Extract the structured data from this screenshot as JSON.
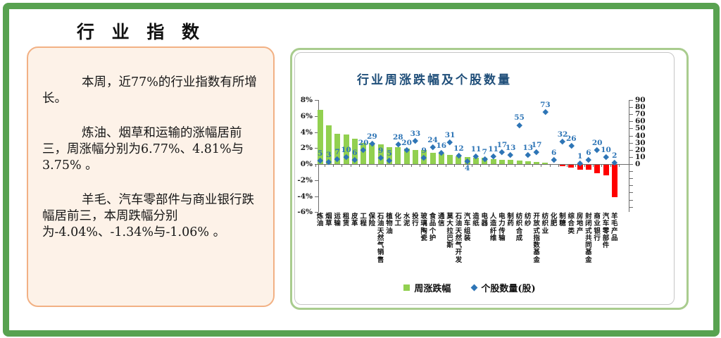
{
  "page": {
    "title": "行 业 指 数"
  },
  "summary_box": {
    "paragraphs": [
      "本周，近77%的行业指数有所增长。",
      "炼油、烟草和运输的涨幅居前三，周涨幅分别为6.77%、4.81%与3.75% 。",
      "羊毛、汽车零部件与商业银行跌幅居前三，本周跌幅分别为-4.04%、-1.34%与-1.06% 。"
    ]
  },
  "chart": {
    "title": "行业周涨跌幅及个股数量",
    "legend": [
      {
        "label": "周涨跌幅",
        "marker": "green-square"
      },
      {
        "label": "个股数量(股)",
        "marker": "blue-diamond"
      }
    ],
    "left_axis": {
      "labels": [
        "8%",
        "6%",
        "4%",
        "2%",
        "0%",
        "-2%",
        "-4%",
        "-6%"
      ],
      "max": 8,
      "min": -6,
      "step": 2
    },
    "right_axis": {
      "labels": [
        "90",
        "80",
        "70",
        "60",
        "50",
        "40",
        "30",
        "20",
        "10",
        "0"
      ],
      "max": 90,
      "min": 0,
      "step": 10
    },
    "colors": {
      "bar_positive": "#92d050",
      "bar_negative": "#ff0000",
      "scatter": "#2e75b6",
      "title": "#1f4e79"
    },
    "chart_data": {
      "type": "bar",
      "title": "行业周涨跌幅及个股数量",
      "legend_position": "bottom",
      "grid": false,
      "left_axis_range": [
        -6,
        8
      ],
      "right_axis_range": [
        0,
        90
      ],
      "categories": [
        "炼油",
        "烟草",
        "运输",
        "租赁",
        "皮革",
        "工程",
        "保险",
        "石油天然气销售",
        "植物油",
        "化工",
        "水泥",
        "投行",
        "玻璃陶瓷",
        "食品个护",
        "通信",
        "莫大拉巴斯",
        "石油天然气开发",
        "汽车组装",
        "造纸",
        "电器",
        "人造纤维",
        "电力传输",
        "制药",
        "纺织合成",
        "纺纱",
        "开放式指数基金",
        "纺织业",
        "化肥",
        "制糖",
        "综合类",
        "房地产",
        "封闭式共同基金",
        "商业银行",
        "汽车零部件",
        "羊毛产品"
      ],
      "series": [
        {
          "name": "周涨跌幅",
          "type": "bar",
          "axis": "left",
          "unit": "%",
          "values": [
            6.77,
            4.81,
            3.75,
            3.7,
            3.2,
            2.65,
            2.65,
            2.45,
            2.15,
            2.15,
            1.9,
            1.75,
            1.75,
            1.45,
            1.3,
            1.15,
            1.0,
            0.9,
            0.8,
            0.8,
            0.6,
            0.55,
            0.5,
            0.4,
            0.33,
            0.27,
            0.2,
            0.0,
            -0.2,
            -0.35,
            -0.6,
            -0.6,
            -1.06,
            -1.34,
            -4.04
          ]
        },
        {
          "name": "个股数量(股)",
          "type": "scatter",
          "axis": "right",
          "unit": "股",
          "values": [
            5,
            3,
            7,
            10,
            6,
            20,
            29,
            9,
            5,
            28,
            20,
            33,
            9,
            24,
            16,
            31,
            12,
            4,
            11,
            7,
            11,
            17,
            13,
            55,
            13,
            17,
            73,
            6,
            32,
            26,
            1,
            6,
            20,
            10,
            2
          ]
        }
      ],
      "count_label_below_indices": [
        17
      ]
    }
  }
}
